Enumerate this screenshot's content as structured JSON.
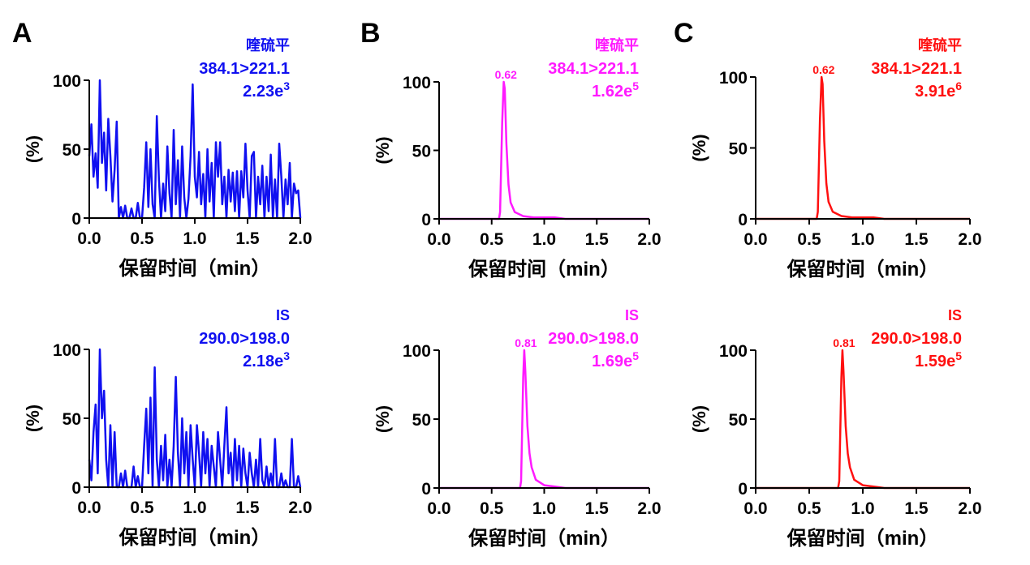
{
  "chart_data": [
    {
      "panel": "A",
      "type": "line",
      "color": "#1010f0",
      "compound": "喹硫平",
      "transition": "384.1>221.1",
      "intensity_base": "2.23e",
      "intensity_exp": "3",
      "peak_label": "",
      "xlabel": "保留时间（min）",
      "ylabel": "(%)",
      "xlim": [
        0,
        2.0
      ],
      "ylim": [
        0,
        100
      ],
      "xticks": [
        "0.0",
        "0.5",
        "1.0",
        "1.5",
        "2.0"
      ],
      "yticks": [
        "0",
        "50",
        "100"
      ],
      "x_start": 0,
      "x_step": 0.02,
      "y": [
        45,
        68,
        30,
        47,
        22,
        100,
        40,
        62,
        20,
        72,
        45,
        12,
        35,
        70,
        0,
        8,
        0,
        9,
        0,
        0,
        7,
        0,
        0,
        11,
        0,
        0,
        22,
        55,
        8,
        50,
        10,
        0,
        74,
        28,
        0,
        25,
        5,
        52,
        18,
        0,
        64,
        10,
        42,
        0,
        52,
        15,
        0,
        14,
        45,
        97,
        30,
        15,
        48,
        10,
        32,
        0,
        50,
        12,
        40,
        0,
        55,
        30,
        55,
        10,
        30,
        0,
        35,
        12,
        33,
        5,
        34,
        0,
        34,
        15,
        54,
        20,
        0,
        45,
        48,
        0,
        30,
        10,
        38,
        0,
        30,
        5,
        46,
        0,
        28,
        0,
        54,
        30,
        0,
        28,
        10,
        40,
        0,
        25,
        18,
        20,
        0
      ]
    },
    {
      "panel": "A",
      "type": "line",
      "color": "#1010f0",
      "compound": "IS",
      "transition": "290.0>198.0",
      "intensity_base": "2.18e",
      "intensity_exp": "3",
      "peak_label": "",
      "xlabel": "保留时间（min）",
      "ylabel": "(%)",
      "xlim": [
        0,
        2.0
      ],
      "ylim": [
        0,
        100
      ],
      "xticks": [
        "0.0",
        "0.5",
        "1.0",
        "1.5",
        "2.0"
      ],
      "yticks": [
        "0",
        "50",
        "100"
      ],
      "x_start": 0,
      "x_step": 0.02,
      "y": [
        20,
        5,
        40,
        60,
        10,
        100,
        50,
        70,
        20,
        0,
        45,
        0,
        40,
        0,
        0,
        10,
        0,
        12,
        0,
        0,
        0,
        15,
        0,
        8,
        0,
        0,
        30,
        57,
        10,
        65,
        0,
        87,
        20,
        0,
        30,
        5,
        38,
        0,
        20,
        0,
        30,
        80,
        25,
        0,
        50,
        10,
        40,
        0,
        45,
        20,
        0,
        45,
        25,
        0,
        40,
        10,
        35,
        0,
        30,
        15,
        0,
        40,
        20,
        0,
        30,
        58,
        10,
        25,
        0,
        35,
        5,
        30,
        0,
        28,
        10,
        0,
        25,
        10,
        0,
        20,
        0,
        35,
        5,
        0,
        15,
        0,
        10,
        0,
        35,
        0,
        0,
        10,
        0,
        5,
        0,
        0,
        35,
        0,
        0,
        8,
        0
      ]
    },
    {
      "panel": "B",
      "type": "line",
      "color": "#ff1aff",
      "compound": "喹硫平",
      "transition": "384.1>221.1",
      "intensity_base": "1.62e",
      "intensity_exp": "5",
      "peak_label": "0.62",
      "peak_x": 0.62,
      "xlabel": "保留时间（min）",
      "ylabel": "(%)",
      "xlim": [
        0,
        2.0
      ],
      "ylim": [
        0,
        100
      ],
      "xticks": [
        "0.0",
        "0.5",
        "1.0",
        "1.5",
        "2.0"
      ],
      "yticks": [
        "0",
        "50",
        "100"
      ],
      "x": [
        0,
        0.57,
        0.58,
        0.6,
        0.615,
        0.625,
        0.64,
        0.66,
        0.68,
        0.72,
        0.8,
        0.9,
        1.0,
        1.1,
        1.2,
        2.0
      ],
      "y": [
        0,
        0,
        5,
        70,
        100,
        95,
        55,
        25,
        12,
        5,
        2,
        1,
        1,
        1,
        0,
        0
      ]
    },
    {
      "panel": "B",
      "type": "line",
      "color": "#ff1aff",
      "compound": "IS",
      "transition": "290.0>198.0",
      "intensity_base": "1.69e",
      "intensity_exp": "5",
      "peak_label": "0.81",
      "peak_x": 0.81,
      "xlabel": "保留时间（min）",
      "ylabel": "(%)",
      "xlim": [
        0,
        2.0
      ],
      "ylim": [
        0,
        100
      ],
      "xticks": [
        "0.0",
        "0.5",
        "1.0",
        "1.5",
        "2.0"
      ],
      "yticks": [
        "0",
        "50",
        "100"
      ],
      "x": [
        0,
        0.77,
        0.78,
        0.8,
        0.81,
        0.82,
        0.84,
        0.86,
        0.88,
        0.92,
        1.0,
        1.1,
        1.2,
        2.0
      ],
      "y": [
        0,
        0,
        5,
        80,
        100,
        85,
        45,
        25,
        15,
        6,
        2,
        1,
        0,
        0
      ]
    },
    {
      "panel": "C",
      "type": "line",
      "color": "#ff1010",
      "compound": "喹硫平",
      "transition": "384.1>221.1",
      "intensity_base": "3.91e",
      "intensity_exp": "6",
      "peak_label": "0.62",
      "peak_x": 0.62,
      "xlabel": "保留时间（min）",
      "ylabel": "(%)",
      "xlim": [
        0,
        2.0
      ],
      "ylim": [
        0,
        100
      ],
      "xticks": [
        "0.0",
        "0.5",
        "1.0",
        "1.5",
        "2.0"
      ],
      "yticks": [
        "0",
        "50",
        "100"
      ],
      "x": [
        0,
        0.57,
        0.58,
        0.6,
        0.615,
        0.625,
        0.64,
        0.66,
        0.68,
        0.72,
        0.8,
        0.9,
        1.0,
        1.1,
        1.2,
        2.0
      ],
      "y": [
        0,
        0,
        5,
        70,
        100,
        95,
        55,
        25,
        12,
        5,
        2,
        1,
        1,
        1,
        0,
        0
      ]
    },
    {
      "panel": "C",
      "type": "line",
      "color": "#ff1010",
      "compound": "IS",
      "transition": "290.0>198.0",
      "intensity_base": "1.59e",
      "intensity_exp": "5",
      "peak_label": "0.81",
      "peak_x": 0.81,
      "xlabel": "保留时间（min）",
      "ylabel": "(%)",
      "xlim": [
        0,
        2.0
      ],
      "ylim": [
        0,
        100
      ],
      "xticks": [
        "0.0",
        "0.5",
        "1.0",
        "1.5",
        "2.0"
      ],
      "yticks": [
        "0",
        "50",
        "100"
      ],
      "x": [
        0,
        0.77,
        0.78,
        0.8,
        0.81,
        0.82,
        0.84,
        0.86,
        0.88,
        0.92,
        1.0,
        1.1,
        1.2,
        2.0
      ],
      "y": [
        0,
        0,
        5,
        80,
        100,
        85,
        45,
        25,
        15,
        6,
        2,
        1,
        0,
        0
      ]
    }
  ]
}
